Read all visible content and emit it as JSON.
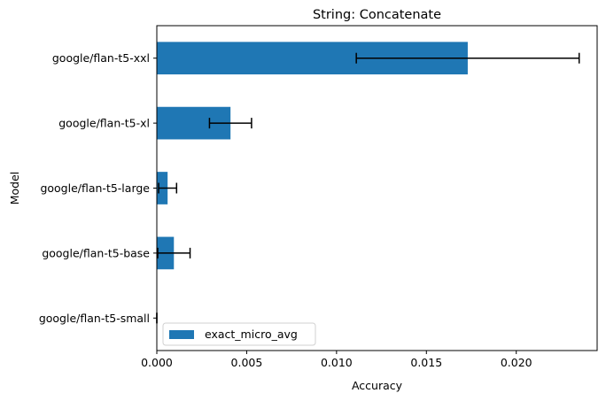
{
  "chart_data": {
    "type": "bar",
    "orientation": "horizontal",
    "title": "String: Concatenate",
    "xlabel": "Accuracy",
    "ylabel": "Model",
    "categories": [
      "google/flan-t5-small",
      "google/flan-t5-base",
      "google/flan-t5-large",
      "google/flan-t5-xl",
      "google/flan-t5-xxl"
    ],
    "series": [
      {
        "name": "exact_micro_avg",
        "values": [
          0.0,
          0.00095,
          0.0006,
          0.0041,
          0.0173
        ],
        "error": [
          0.0,
          0.0009,
          0.0005,
          0.00117,
          0.0062
        ],
        "color": "#1f77b4"
      }
    ],
    "xlim": [
      0,
      0.0245
    ],
    "xticks": [
      0.0,
      0.005,
      0.01,
      0.015,
      0.02
    ],
    "xtick_labels": [
      "0.000",
      "0.005",
      "0.010",
      "0.015",
      "0.020"
    ],
    "grid": false,
    "legend_position": "lower-left"
  }
}
